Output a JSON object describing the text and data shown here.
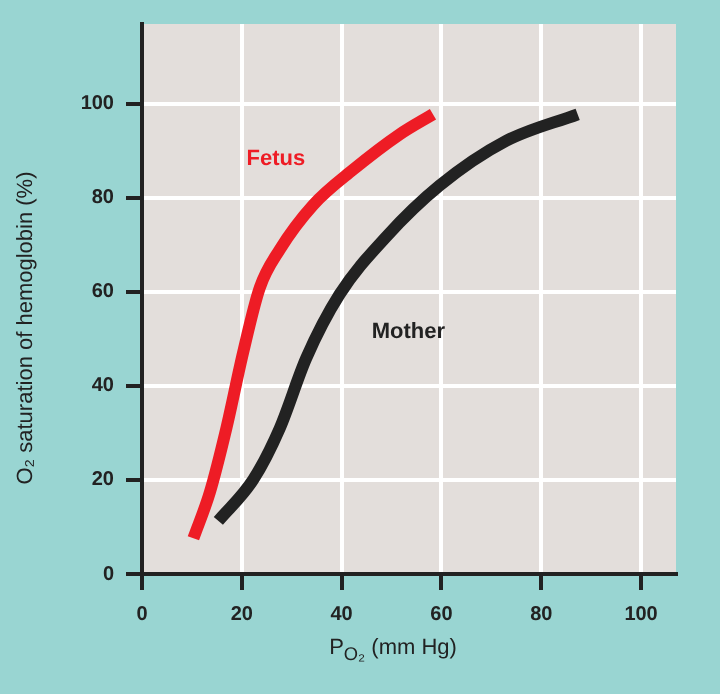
{
  "chart_data": {
    "type": "line",
    "xlabel": "P$_{O₂}$ (mm Hg)",
    "ylabel": "O₂ saturation of hemoglobin (%)",
    "xlim": [
      0,
      107
    ],
    "xticks": [
      0,
      20,
      40,
      60,
      80,
      100
    ],
    "ylim": [
      0,
      117
    ],
    "yticks": [
      0,
      20,
      40,
      60,
      80,
      100
    ],
    "grid": true,
    "legend": false,
    "marker": "none",
    "line_style": "solid",
    "series": [
      {
        "name": "Fetus",
        "color": "#ee1c25",
        "x": [
          10.3,
          13.6,
          16.9,
          20.3,
          23.6,
          27.6,
          34.3,
          42.3,
          51.6,
          58.3
        ],
        "values": [
          7.6,
          17.4,
          31,
          47.3,
          60.9,
          69,
          78.5,
          86,
          93.5,
          97.8
        ]
      },
      {
        "name": "Mother",
        "color": "#222222",
        "x": [
          15.3,
          22.3,
          27.6,
          32.9,
          39.6,
          48.9,
          59.6,
          72.9,
          87.3
        ],
        "values": [
          11.3,
          20.1,
          31,
          45.9,
          59.5,
          71.7,
          82.6,
          92.1,
          97.8
        ]
      }
    ]
  }
}
